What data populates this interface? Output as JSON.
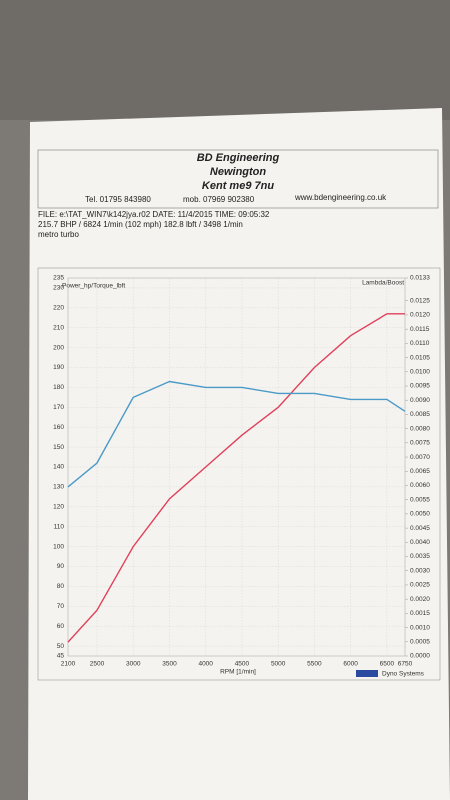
{
  "header": {
    "company": "BD Engineering",
    "town": "Newington",
    "county": "Kent me9 7nu",
    "tel": "Tel. 01795 843980",
    "mob": "mob. 07969 902380",
    "web": "www.bdengineering.co.uk",
    "file": "FILE: e:\\TAT_WIN7\\k142jya.r02  DATE: 11/4/2015  TIME: 09:05:32",
    "peaks": "215.7 BHP / 6824 1/min (102 mph)   182.8 lbft / 3498 1/min",
    "car": "metro turbo"
  },
  "footer": "Dyno Systems",
  "chart_data": {
    "type": "line",
    "y_label": "Power_hp/Torque_lbft",
    "y2_label": "Lambda/Boost",
    "x_label": "RPM [1/min]",
    "x": [
      2100,
      2500,
      3000,
      3500,
      4000,
      4500,
      5000,
      5500,
      6000,
      6500,
      6750
    ],
    "series": [
      {
        "color": "#e0405a",
        "values": [
          52,
          68,
          100,
          124,
          140,
          156,
          170,
          190,
          206,
          217,
          217
        ]
      },
      {
        "color": "#4a9ac8",
        "values": [
          130,
          142,
          175,
          183,
          180,
          180,
          177,
          177,
          174,
          174,
          168
        ]
      }
    ],
    "xlim": [
      2100,
      6750
    ],
    "xticks": [
      2100,
      2500,
      3000,
      3500,
      4000,
      4500,
      5000,
      5500,
      6000,
      6500,
      6750
    ],
    "ylim": [
      45,
      235
    ],
    "yticks": [
      45,
      50,
      60,
      70,
      80,
      90,
      100,
      110,
      120,
      130,
      140,
      150,
      160,
      170,
      180,
      190,
      200,
      210,
      220,
      230,
      235
    ],
    "y2lim": [
      0,
      0.0133
    ],
    "y2ticks": [
      {
        "value": 0,
        "label": "0.0000"
      },
      0.0005,
      {
        "value": 0.001,
        "label": "0.0010"
      },
      0.0015,
      {
        "value": 0.002,
        "label": "0.0020"
      },
      0.0025,
      {
        "value": 0.003,
        "label": "0.0030"
      },
      0.0035,
      {
        "value": 0.004,
        "label": "0.0040"
      },
      0.0045,
      {
        "value": 0.005,
        "label": "0.0050"
      },
      0.0055,
      {
        "value": 0.006,
        "label": "0.0060"
      },
      0.0065,
      {
        "value": 0.007,
        "label": "0.0070"
      },
      0.0075,
      {
        "value": 0.008,
        "label": "0.0080"
      },
      0.0085,
      {
        "value": 0.009,
        "label": "0.0090"
      },
      0.0095,
      {
        "value": 0.01,
        "label": "0.0100"
      },
      0.0105,
      {
        "value": 0.011,
        "label": "0.0110"
      },
      0.0115,
      {
        "value": 0.012,
        "label": "0.0120"
      },
      0.0125,
      0.0133
    ],
    "grid": true
  }
}
